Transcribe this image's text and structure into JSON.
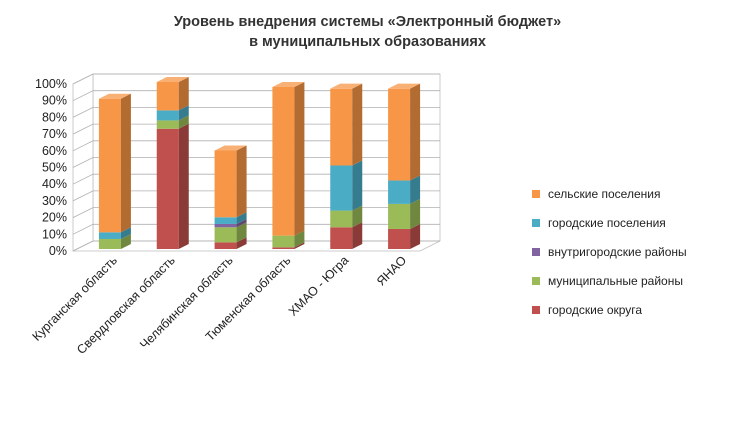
{
  "title": {
    "line1": "Уровень внедрения системы «Электронный бюджет»",
    "line2": "в муниципальных образованиях"
  },
  "chart_data": {
    "type": "bar",
    "stacked": true,
    "three_d": true,
    "categories": [
      "Курганская область",
      "Свердловская область",
      "Челябинская область",
      "Тюменская область",
      "ХМАО - Югра",
      "ЯНАО"
    ],
    "series": [
      {
        "name": "городские округа",
        "color": "#c0504d",
        "values": [
          0,
          72,
          4,
          1,
          13,
          12
        ]
      },
      {
        "name": "муниципальные районы",
        "color": "#9bbb59",
        "values": [
          6,
          5,
          9,
          7,
          10,
          15
        ]
      },
      {
        "name": "внутригородские районы",
        "color": "#8064a2",
        "values": [
          0,
          0,
          2,
          0,
          0,
          0
        ]
      },
      {
        "name": "городские поселения",
        "color": "#4bacc6",
        "values": [
          4,
          6,
          4,
          0,
          27,
          14
        ]
      },
      {
        "name": "сельские поселения",
        "color": "#f79646",
        "values": [
          80,
          17,
          40,
          89,
          46,
          55
        ]
      }
    ],
    "ylim": [
      0,
      100
    ],
    "yticks": [
      "0%",
      "10%",
      "20%",
      "30%",
      "40%",
      "50%",
      "60%",
      "70%",
      "80%",
      "90%",
      "100%"
    ],
    "grid": true,
    "legend_position": "right",
    "legend_order": [
      "сельские поселения",
      "городские поселения",
      "внутригородские районы",
      "муниципальные районы",
      "городские округа"
    ]
  }
}
